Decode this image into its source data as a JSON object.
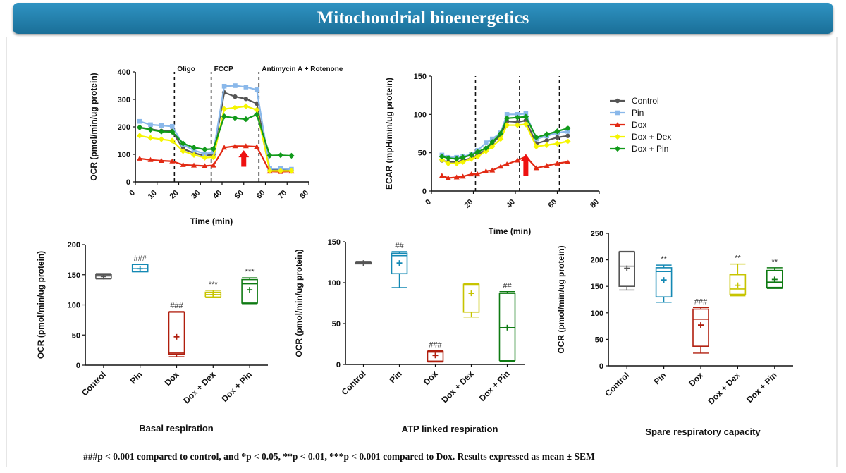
{
  "banner": {
    "title": "Mitochondrial bioenergetics"
  },
  "footnote": "###p < 0.001 compared to control, and *p < 0.05, **p < 0.01, ***p < 0.001 compared to Dox. Results expressed as mean ± SEM",
  "colors": {
    "Control": "#555555",
    "Pin": "#8ab8ea",
    "Dox": "#e22a14",
    "Dox + Dex": "#f5f500",
    "Dox + Pin": "#119a1a",
    "Pin_box": "#1489b4",
    "Dox_box": "#b01e0e",
    "DoxDex_box": "#c7c400",
    "DoxPin_box": "#0e7a12",
    "arrow": "#ee1111"
  },
  "legend": {
    "items": [
      {
        "name": "Control",
        "marker": "circle"
      },
      {
        "name": "Pin",
        "marker": "square"
      },
      {
        "name": "Dox",
        "marker": "triangle"
      },
      {
        "name": "Dox + Dex",
        "marker": "diamond"
      },
      {
        "name": "Dox + Pin",
        "marker": "diamond"
      }
    ]
  },
  "chart_data": [
    {
      "type": "line",
      "xlabel": "Time (min)",
      "ylabel": "OCR (pmol/min/ug protein)",
      "xlim": [
        0,
        80
      ],
      "ylim": [
        0,
        400
      ],
      "xticks": [
        "0",
        "10",
        "20",
        "30",
        "40",
        "50",
        "60",
        "70",
        "80"
      ],
      "yticks": [
        "0",
        "100",
        "200",
        "300",
        "400"
      ],
      "injections": [
        {
          "x": 18,
          "label": "Oligo"
        },
        {
          "x": 35,
          "label": "FCCP"
        },
        {
          "x": 57,
          "label": "Antimycin A + Rotenone"
        }
      ],
      "arrow_x": 50,
      "x": [
        2,
        7,
        12,
        17,
        22,
        27,
        32,
        36,
        41,
        46,
        51,
        56,
        62,
        67,
        72
      ],
      "series": [
        {
          "name": "Control",
          "values": [
            198,
            192,
            185,
            185,
            120,
            105,
            95,
            100,
            325,
            310,
            302,
            285,
            45,
            45,
            43
          ]
        },
        {
          "name": "Pin",
          "values": [
            220,
            208,
            205,
            202,
            135,
            115,
            102,
            108,
            348,
            350,
            345,
            335,
            48,
            48,
            46
          ]
        },
        {
          "name": "Dox",
          "values": [
            85,
            80,
            77,
            75,
            62,
            60,
            58,
            60,
            125,
            130,
            130,
            128,
            38,
            37,
            38
          ]
        },
        {
          "name": "Dox + Dex",
          "values": [
            168,
            160,
            155,
            150,
            112,
            98,
            88,
            90,
            265,
            270,
            275,
            262,
            40,
            40,
            40
          ]
        },
        {
          "name": "Dox + Pin",
          "values": [
            198,
            190,
            183,
            182,
            140,
            125,
            118,
            120,
            238,
            232,
            228,
            245,
            96,
            97,
            95
          ]
        }
      ]
    },
    {
      "type": "line",
      "xlabel": "Time (min)",
      "ylabel": "ECAR (mpH/min/ug protein)",
      "xlim": [
        0,
        80
      ],
      "ylim": [
        0,
        150
      ],
      "xticks": [
        "0",
        "20",
        "40",
        "60",
        "80"
      ],
      "yticks": [
        "0",
        "50",
        "100",
        "150"
      ],
      "injections": [
        {
          "x": 21
        },
        {
          "x": 42
        },
        {
          "x": 61
        }
      ],
      "arrow_x": 45,
      "x": [
        5,
        8,
        12,
        15,
        19,
        22,
        26,
        29,
        33,
        36,
        41,
        45,
        50,
        55,
        60,
        65
      ],
      "series": [
        {
          "name": "Control",
          "values": [
            40,
            38,
            38,
            40,
            43,
            47,
            54,
            62,
            73,
            91,
            90,
            92,
            62,
            66,
            70,
            72
          ]
        },
        {
          "name": "Pin",
          "values": [
            47,
            44,
            44,
            45,
            48,
            53,
            63,
            68,
            76,
            100,
            100,
            101,
            68,
            72,
            76,
            78
          ]
        },
        {
          "name": "Dox",
          "values": [
            20,
            17,
            18,
            19,
            22,
            22,
            26,
            27,
            32,
            35,
            40,
            45,
            30,
            33,
            36,
            38
          ]
        },
        {
          "name": "Dox + Dex",
          "values": [
            41,
            36,
            36,
            38,
            42,
            45,
            52,
            58,
            68,
            86,
            86,
            87,
            58,
            60,
            62,
            65
          ]
        },
        {
          "name": "Dox + Pin",
          "values": [
            45,
            43,
            42,
            44,
            47,
            51,
            56,
            64,
            75,
            95,
            96,
            97,
            70,
            74,
            78,
            82
          ]
        }
      ]
    },
    {
      "type": "box",
      "title": "Basal respiration",
      "ylabel": "OCR (pmol/min/ug protein)",
      "ylim": [
        0,
        200
      ],
      "yticks": [
        "0",
        "50",
        "100",
        "150",
        "200"
      ],
      "categories": [
        "Control",
        "Pin",
        "Dox",
        "Dox + Dex",
        "Dox + Pin"
      ],
      "boxes": [
        {
          "min": 143,
          "q1": 144,
          "median": 148,
          "q3": 150,
          "max": 152,
          "mean": 147,
          "label": ""
        },
        {
          "min": 155,
          "q1": 155,
          "median": 160,
          "q3": 167,
          "max": 167,
          "mean": 160,
          "label": "###"
        },
        {
          "min": 14,
          "q1": 18,
          "median": 20,
          "q3": 88,
          "max": 89,
          "mean": 47,
          "label": "###"
        },
        {
          "min": 112,
          "q1": 113,
          "median": 117,
          "q3": 121,
          "max": 124,
          "mean": 117,
          "label": "***"
        },
        {
          "min": 102,
          "q1": 103,
          "median": 135,
          "q3": 142,
          "max": 145,
          "mean": 125,
          "label": "***"
        }
      ]
    },
    {
      "type": "box",
      "title": "ATP linked respiration",
      "ylabel": "OCR (pmol/min/ug protein)",
      "ylim": [
        0,
        150
      ],
      "yticks": [
        "0",
        "50",
        "100",
        "150"
      ],
      "categories": [
        "Control",
        "Pin",
        "Dox",
        "Dox + Dex",
        "Dox + Pin"
      ],
      "boxes": [
        {
          "min": 123,
          "q1": 123,
          "median": 124,
          "q3": 125,
          "max": 126,
          "mean": 124,
          "label": ""
        },
        {
          "min": 94,
          "q1": 111,
          "median": 133,
          "q3": 136,
          "max": 138,
          "mean": 124,
          "label": "##"
        },
        {
          "min": 3,
          "q1": 4,
          "median": 15,
          "q3": 16,
          "max": 17,
          "mean": 11,
          "label": "###"
        },
        {
          "min": 58,
          "q1": 64,
          "median": 97,
          "q3": 98,
          "max": 99,
          "mean": 87,
          "label": ""
        },
        {
          "min": 4,
          "q1": 5,
          "median": 45,
          "q3": 87,
          "max": 89,
          "mean": 45,
          "label": "##"
        }
      ]
    },
    {
      "type": "box",
      "title": "Spare respiratory capacity",
      "ylabel": "OCR (pmol/min/ug protein)",
      "ylim": [
        0,
        250
      ],
      "yticks": [
        "0",
        "50",
        "100",
        "150",
        "200",
        "250"
      ],
      "categories": [
        "Control",
        "Pin",
        "Dox",
        "Dox + Dex",
        "Dox + Pin"
      ],
      "boxes": [
        {
          "min": 143,
          "q1": 150,
          "median": 188,
          "q3": 215,
          "max": 216,
          "mean": 184,
          "label": ""
        },
        {
          "min": 120,
          "q1": 130,
          "median": 178,
          "q3": 185,
          "max": 190,
          "mean": 162,
          "label": "**"
        },
        {
          "min": 24,
          "q1": 37,
          "median": 88,
          "q3": 107,
          "max": 110,
          "mean": 77,
          "label": "###"
        },
        {
          "min": 132,
          "q1": 135,
          "median": 145,
          "q3": 172,
          "max": 192,
          "mean": 152,
          "label": "**"
        },
        {
          "min": 146,
          "q1": 148,
          "median": 158,
          "q3": 180,
          "max": 185,
          "mean": 163,
          "label": "**"
        }
      ]
    }
  ]
}
